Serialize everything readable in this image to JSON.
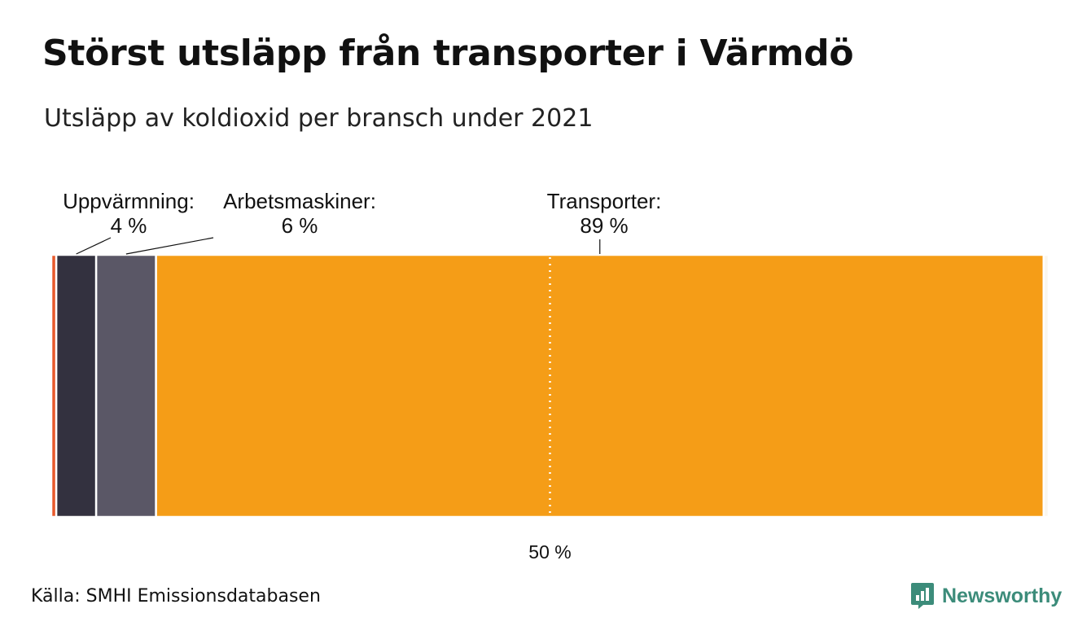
{
  "title": "Störst utsläpp från transporter i Värmdö",
  "subtitle": "Utsläpp av koldioxid per bransch under 2021",
  "source": "Källa: SMHI Emissionsdatabasen",
  "brand": {
    "name": "Newsworthy",
    "icon": "newsworthy-logo-icon",
    "color": "#3c8c7a"
  },
  "chart_data": {
    "type": "bar",
    "orientation": "stacked-horizontal-100",
    "segments": [
      {
        "value": 0.5,
        "color": "#e85a2c"
      },
      {
        "value": 4,
        "label": "Uppvärmning:",
        "value_label": "4 %",
        "color": "#33313f"
      },
      {
        "value": 6,
        "label": "Arbetsmaskiner:",
        "value_label": "6 %",
        "color": "#5a5766"
      },
      {
        "value": 89,
        "label": "Transporter:",
        "value_label": "89 %",
        "color": "#f59d17"
      },
      {
        "value": 0.5,
        "color": "#faf6ee"
      }
    ],
    "reference_line": {
      "value": 50,
      "label": "50 %"
    },
    "xlim": [
      0,
      100
    ]
  }
}
